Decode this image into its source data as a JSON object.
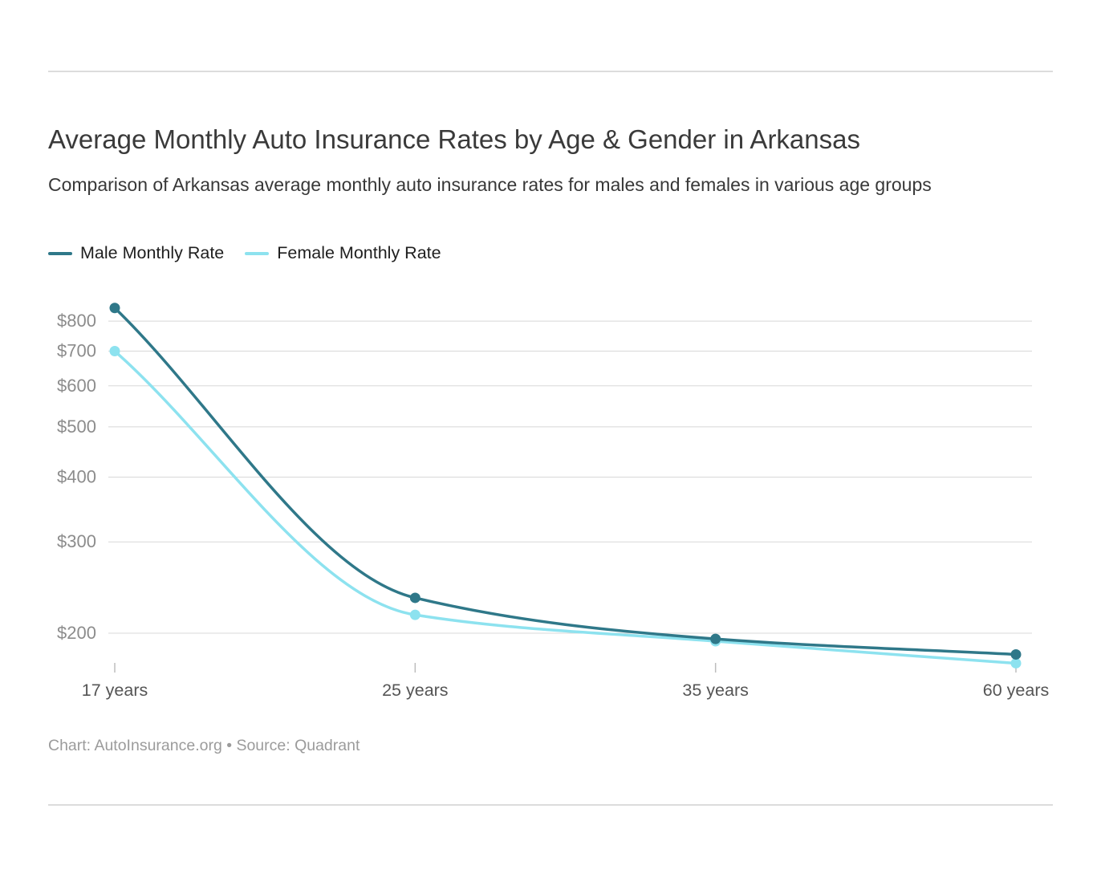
{
  "chart_data": {
    "type": "line",
    "title": "Average Monthly Auto Insurance Rates by Age & Gender in Arkansas",
    "subtitle": "Comparison of Arkansas average monthly auto insurance rates for males and females in various age groups",
    "categories": [
      "17 years",
      "25 years",
      "35 years",
      "60 years"
    ],
    "series": [
      {
        "name": "Male Monthly Rate",
        "color": "#2f7889",
        "values": [
          848,
          234,
          195,
          182
        ]
      },
      {
        "name": "Female Monthly Rate",
        "color": "#8de2ef",
        "values": [
          700,
          217,
          193,
          175
        ]
      }
    ],
    "y_axis": {
      "scale": "log",
      "tick_values": [
        200,
        300,
        400,
        500,
        600,
        700,
        800
      ],
      "tick_labels": [
        "$200",
        "$300",
        "$400",
        "$500",
        "$600",
        "$700",
        "$800"
      ],
      "tick_prefix": "$"
    },
    "grid": true,
    "legend_position": "top-left",
    "attribution": "Chart: AutoInsurance.org • Source: Quadrant"
  }
}
